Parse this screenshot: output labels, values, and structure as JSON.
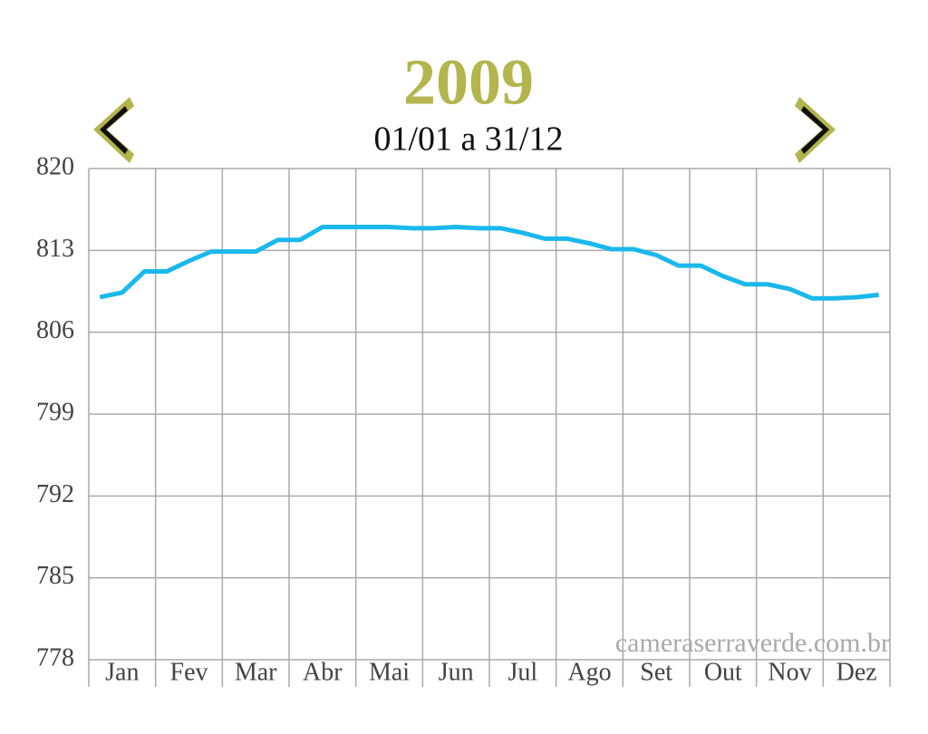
{
  "chart_data": {
    "type": "line",
    "title": "2009",
    "subtitle": "01/01 a 31/12",
    "watermark": "cameraserraverde.com.br",
    "categories": [
      null,
      "Jan",
      null,
      null,
      "Fev",
      null,
      null,
      "Mar",
      null,
      null,
      "Abr",
      null,
      null,
      "Mai",
      null,
      null,
      "Jun",
      null,
      null,
      "Jul",
      null,
      null,
      "Ago",
      null,
      null,
      "Set",
      null,
      null,
      "Out",
      null,
      null,
      "Nov",
      null,
      null,
      "Dez",
      null
    ],
    "series": [
      {
        "color": "#1ab8ec",
        "values": [
          809.0,
          809.4,
          811.2,
          811.2,
          812.1,
          812.9,
          812.9,
          812.9,
          813.9,
          813.9,
          815.0,
          815.0,
          815.0,
          815.0,
          814.9,
          814.9,
          815.0,
          814.9,
          814.9,
          814.5,
          814.0,
          814.0,
          813.6,
          813.1,
          813.1,
          812.6,
          811.7,
          811.7,
          810.8,
          810.1,
          810.1,
          809.7,
          808.9,
          808.9,
          809.0,
          809.2
        ]
      }
    ],
    "ylim": [
      778,
      820
    ],
    "yticks": [
      778,
      785,
      792,
      799,
      806,
      813,
      820
    ],
    "grid": true
  }
}
